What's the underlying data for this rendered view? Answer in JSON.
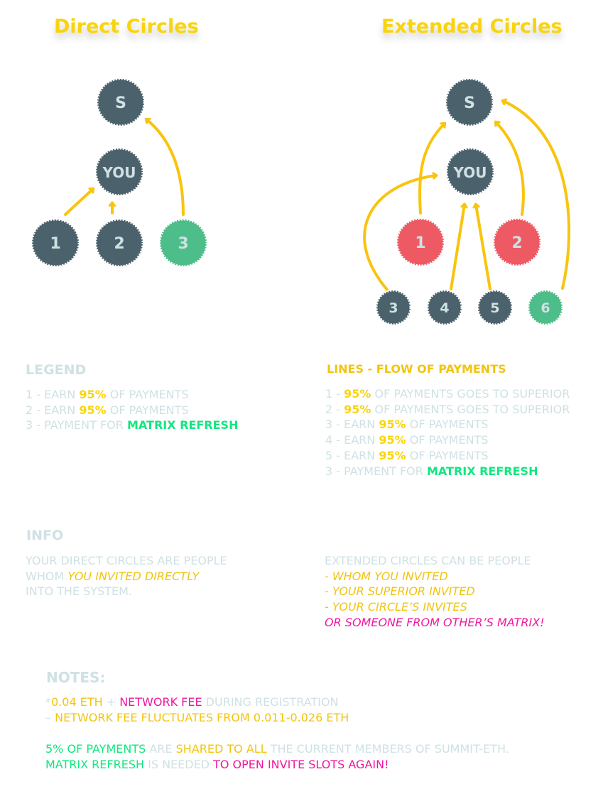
{
  "titles": {
    "direct": "Direct Circles",
    "extended": "Extended Circles"
  },
  "direct_nodes": {
    "s": "S",
    "you": "YOU",
    "n1": "1",
    "n2": "2",
    "n3": "3"
  },
  "extended_nodes": {
    "s": "S",
    "you": "YOU",
    "n1": "1",
    "n2": "2",
    "n3": "3",
    "n4": "4",
    "n5": "5",
    "n6": "6"
  },
  "colors": {
    "node_dark": "#4b626c",
    "node_red": "#ee5a63",
    "node_green": "#4dbd89",
    "arrow": "#f8c40e",
    "highlight_yellow": "#f9d40e",
    "highlight_green": "#12e67f",
    "highlight_magenta": "#f1179f",
    "muted_text": "#cfe1e4"
  },
  "legend": {
    "heading": "LEGEND",
    "lines": [
      {
        "pre": "1 - EARN ",
        "hl": "95%",
        "post": " OF PAYMENTS"
      },
      {
        "pre": "2 - EARN ",
        "hl": "95%",
        "post": " OF PAYMENTS"
      },
      {
        "pre": "3 - PAYMENT FOR ",
        "hl": "MATRIX REFRESH",
        "post": ""
      }
    ]
  },
  "lines_legend": {
    "heading": "LINES - FLOW OF PAYMENTS",
    "lines": [
      {
        "pre": "1 - ",
        "hl": "95%",
        "post": " OF PAYMENTS GOES TO SUPERIOR"
      },
      {
        "pre": "2 - ",
        "hl": "95%",
        "post": " OF PAYMENTS GOES TO SUPERIOR"
      },
      {
        "pre": "3 - EARN ",
        "hl": "95%",
        "post": " OF PAYMENTS"
      },
      {
        "pre": "4 - EARN ",
        "hl": "95%",
        "post": " OF PAYMENTS"
      },
      {
        "pre": "5 - EARN ",
        "hl": "95%",
        "post": " OF PAYMENTS"
      },
      {
        "pre": "3 - PAYMENT FOR ",
        "hl": "MATRIX REFRESH",
        "post": ""
      }
    ]
  },
  "info": {
    "heading": "INFO",
    "left": {
      "line1": "YOUR DIRECT CIRCLES ARE PEOPLE",
      "line2_pre": "WHOM ",
      "line2_hl": "YOU INVITED DIRECTLY",
      "line3": "INTO THE SYSTEM."
    },
    "right": {
      "line1": "EXTENDED CIRCLES CAN BE PEOPLE",
      "line2": "- WHOM YOU INVITED",
      "line3": "- YOUR SUPERIOR INVITED",
      "line4": "- YOUR CIRCLE’S INVITES",
      "line5": "OR SOMEONE FROM OTHER’S MATRIX!"
    }
  },
  "notes": {
    "heading": "NOTES:",
    "line1_star": "*",
    "line1_a": "0.04 ETH",
    "line1_plus": " + ",
    "line1_b": "NETWORK FEE",
    "line1_c": " DURING REGISTRATION",
    "line2_dash": "– ",
    "line2_text": "NETWORK FEE FLUCTUATES FROM 0.011-0.026 ETH",
    "line3_a": "5% OF PAYMENTS",
    "line3_b": " ARE ",
    "line3_c": "SHARED TO ALL",
    "line3_d": " THE CURRENT MEMBERS OF SUMMIT-ETH.",
    "line4_a": "MATRIX REFRESH",
    "line4_b": " IS NEEDED ",
    "line4_c": "TO OPEN INVITE SLOTS AGAIN!"
  }
}
